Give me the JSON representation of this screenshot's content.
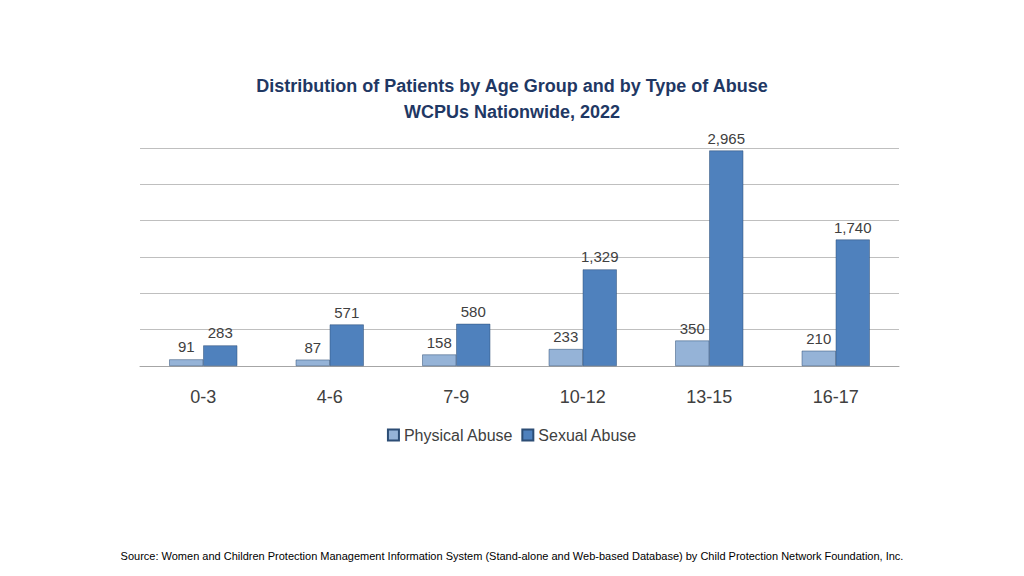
{
  "chart_data": {
    "type": "bar",
    "title": "Distribution of Patients by Age Group and by Type of Abuse",
    "subtitle": "WCPUs Nationwide, 2022",
    "source": "Source: Women and Children Protection Management Information System (Stand-alone and Web-based Database) by Child Protection Network Foundation, Inc.",
    "categories": [
      "0-3",
      "4-6",
      "7-9",
      "10-12",
      "13-15",
      "16-17"
    ],
    "series": [
      {
        "name": "Physical Abuse",
        "color": "#95b3d7",
        "values": [
          91,
          87,
          158,
          233,
          350,
          210
        ],
        "value_labels": [
          "91",
          "87",
          "158",
          "233",
          "350",
          "210"
        ]
      },
      {
        "name": "Sexual Abuse",
        "color": "#4f81bd",
        "values": [
          283,
          571,
          580,
          1329,
          2965,
          1740
        ],
        "value_labels": [
          "283",
          "571",
          "580",
          "1,329",
          "2,965",
          "1,740"
        ]
      }
    ],
    "ylim": [
      0,
      3000
    ],
    "yticks": [
      0,
      500,
      1000,
      1500,
      2000,
      2500,
      3000
    ],
    "grid": true,
    "legend": "bottom",
    "data_labels": true,
    "tick_labels": "x"
  }
}
